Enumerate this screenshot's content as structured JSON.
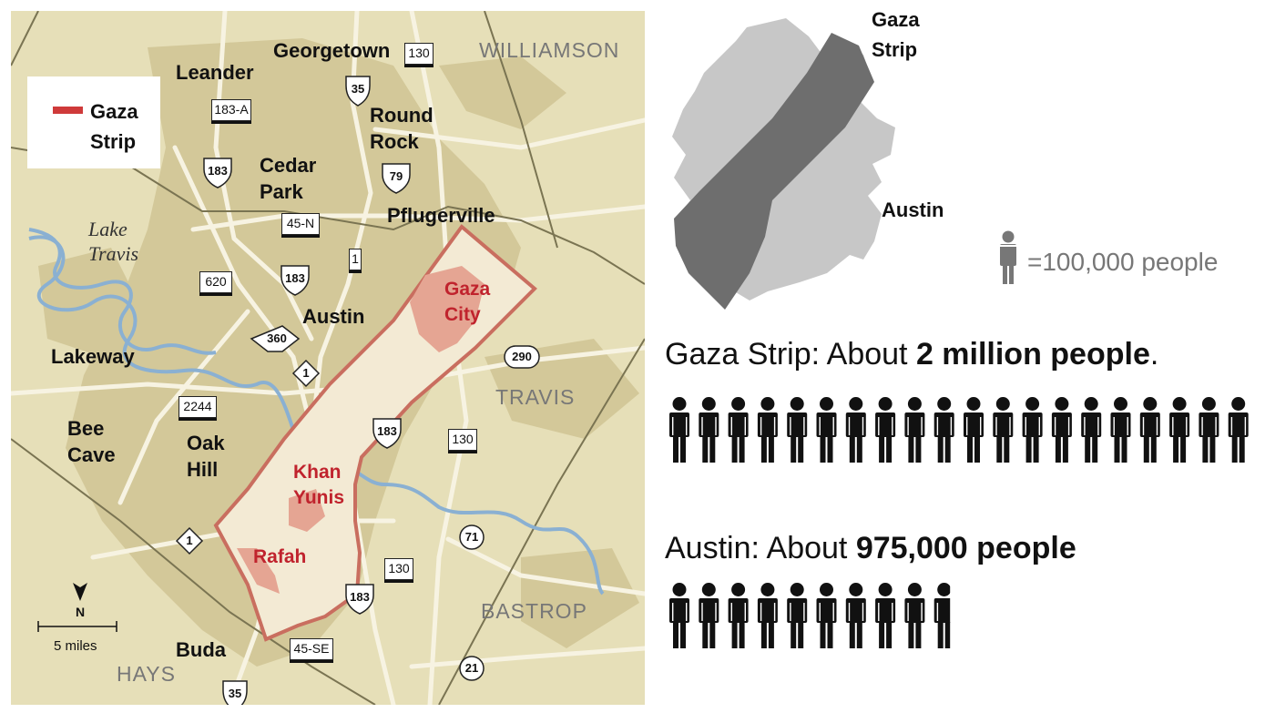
{
  "map": {
    "legend": {
      "label": "Gaza\nStrip",
      "swatch_color": "#cf3a3a"
    },
    "places": [
      {
        "id": "georgetown",
        "label": "Georgetown"
      },
      {
        "id": "leander",
        "label": "Leander"
      },
      {
        "id": "round-rock",
        "label": "Round\nRock"
      },
      {
        "id": "cedar-park",
        "label": "Cedar\nPark"
      },
      {
        "id": "pflugerville",
        "label": "Pflugerville"
      },
      {
        "id": "austin",
        "label": "Austin"
      },
      {
        "id": "lakeway",
        "label": "Lakeway"
      },
      {
        "id": "bee-cave",
        "label": "Bee\nCave"
      },
      {
        "id": "oak-hill",
        "label": "Oak\nHill"
      },
      {
        "id": "buda",
        "label": "Buda"
      }
    ],
    "lake": "Lake\nTravis",
    "counties": [
      "WILLIAMSON",
      "TRAVIS",
      "BASTROP",
      "HAYS"
    ],
    "gaza_places": [
      "Gaza\nCity",
      "Khan\nYunis",
      "Rafah"
    ],
    "highways": {
      "h130a": "130",
      "h35a": "35",
      "h183a": "183-A",
      "h183b": "183",
      "h79": "79",
      "h45n": "45-N",
      "h1a": "1",
      "h183c": "183",
      "h620": "620",
      "h360": "360",
      "h1b": "1",
      "h290": "290",
      "h2244": "2244",
      "h183d": "183",
      "h130b": "130",
      "h1c": "1",
      "h71": "71",
      "h130c": "130",
      "h183e": "183",
      "h45se": "45-SE",
      "h35b": "35",
      "h21": "21"
    },
    "scale": {
      "label": "5 miles",
      "north": "N"
    },
    "colors": {
      "land": "#e6dfb8",
      "urban": "#d3c899",
      "water": "#8ab0d2",
      "gaza_fill": "#f3ead4",
      "gaza_outline": "#c96e5f",
      "gaza_city": "#e5a593"
    }
  },
  "overlay": {
    "gaza_label": "Gaza\nStrip",
    "austin_label": "Austin"
  },
  "key": {
    "text": "=100,000 people",
    "color": "#777777"
  },
  "comparison": {
    "gaza": {
      "prefix": "Gaza Strip: About ",
      "bold": "2 million people",
      "suffix": ".",
      "count": 20
    },
    "austin": {
      "prefix": "Austin: About ",
      "bold": "975,000 people",
      "suffix": "",
      "count": 9.75
    }
  }
}
